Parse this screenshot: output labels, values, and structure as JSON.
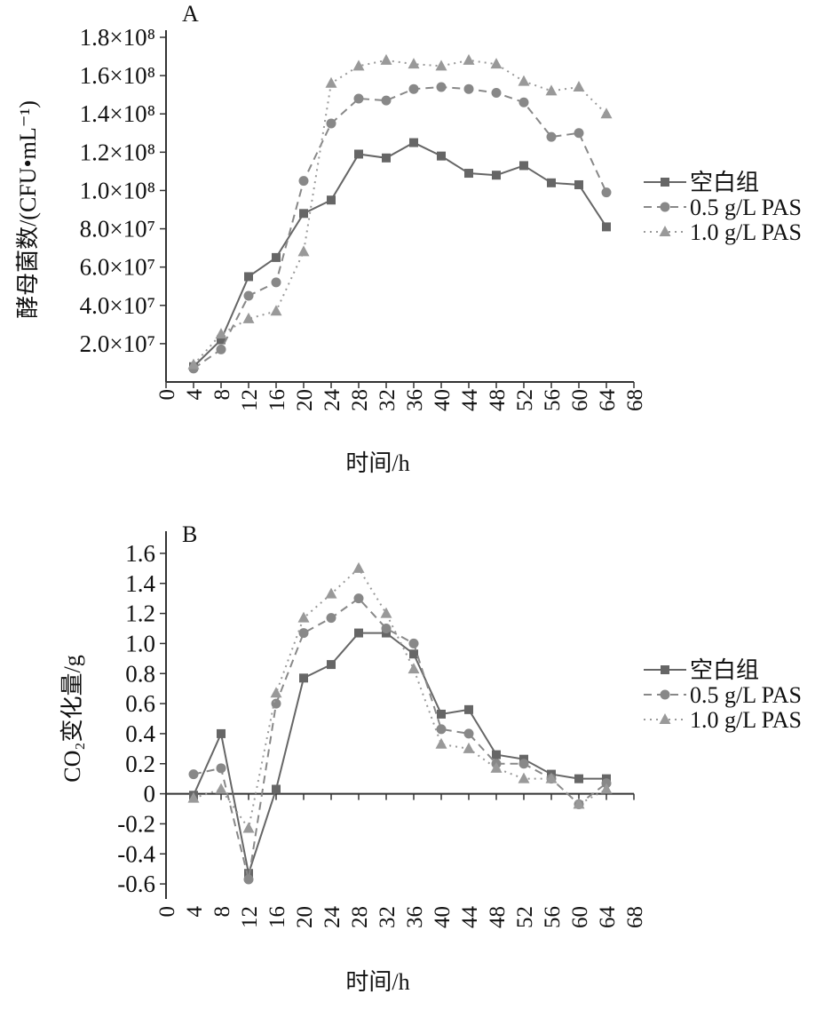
{
  "chart_data": [
    {
      "type": "line",
      "panel_label": "A",
      "xlabel": "时间/h",
      "ylabel": "酵母菌数/(CFU•mL⁻¹)",
      "xlim": [
        0,
        68
      ],
      "ylim": [
        0,
        180000000
      ],
      "x_ticks": [
        "0",
        "4",
        "8",
        "12",
        "16",
        "20",
        "24",
        "28",
        "32",
        "36",
        "40",
        "44",
        "48",
        "52",
        "56",
        "60",
        "64",
        "68"
      ],
      "y_ticks": [
        {
          "value": 20000000,
          "label": "2.0×10⁷"
        },
        {
          "value": 40000000,
          "label": "4.0×10⁷"
        },
        {
          "value": 60000000,
          "label": "6.0×10⁷"
        },
        {
          "value": 80000000,
          "label": "8.0×10⁷"
        },
        {
          "value": 100000000,
          "label": "1.0×10⁸"
        },
        {
          "value": 120000000,
          "label": "1.2×10⁸"
        },
        {
          "value": 140000000,
          "label": "1.4×10⁸"
        },
        {
          "value": 160000000,
          "label": "1.6×10⁸"
        },
        {
          "value": 180000000,
          "label": "1.8×10⁸"
        }
      ],
      "x": [
        4,
        8,
        12,
        16,
        20,
        24,
        28,
        32,
        36,
        40,
        44,
        48,
        52,
        56,
        60,
        64
      ],
      "legend_position": "right",
      "series": [
        {
          "name": "空白组",
          "marker": "square",
          "dash": "solid",
          "color": "#666666",
          "values": [
            8000000,
            22000000,
            55000000,
            65000000,
            88000000,
            95000000,
            119000000,
            117000000,
            125000000,
            118000000,
            109000000,
            108000000,
            113000000,
            104000000,
            103000000,
            81000000
          ]
        },
        {
          "name": "0.5 g/L PAS",
          "marker": "circle",
          "dash": "dashed",
          "color": "#888888",
          "values": [
            7000000,
            17000000,
            45000000,
            52000000,
            105000000,
            135000000,
            148000000,
            147000000,
            153000000,
            154000000,
            153000000,
            151000000,
            146000000,
            128000000,
            130000000,
            99000000
          ]
        },
        {
          "name": "1.0 g/L PAS",
          "marker": "triangle",
          "dash": "dotted",
          "color": "#999999",
          "values": [
            9000000,
            25000000,
            33000000,
            37000000,
            68000000,
            156000000,
            165000000,
            168000000,
            166000000,
            165000000,
            168000000,
            166000000,
            157000000,
            152000000,
            154000000,
            140000000
          ]
        }
      ]
    },
    {
      "type": "line",
      "panel_label": "B",
      "xlabel": "时间/h",
      "ylabel": "CO₂变化量/g",
      "xlim": [
        0,
        68
      ],
      "ylim": [
        -0.7,
        1.7
      ],
      "x_ticks": [
        "0",
        "4",
        "8",
        "12",
        "16",
        "20",
        "24",
        "28",
        "32",
        "36",
        "40",
        "44",
        "48",
        "52",
        "56",
        "60",
        "64",
        "68"
      ],
      "y_ticks": [
        {
          "value": -0.6,
          "label": "-0.6"
        },
        {
          "value": -0.4,
          "label": "-0.4"
        },
        {
          "value": -0.2,
          "label": "-0.2"
        },
        {
          "value": 0,
          "label": "0"
        },
        {
          "value": 0.2,
          "label": "0.2"
        },
        {
          "value": 0.4,
          "label": "0.4"
        },
        {
          "value": 0.6,
          "label": "0.6"
        },
        {
          "value": 0.8,
          "label": "0.8"
        },
        {
          "value": 1.0,
          "label": "1.0"
        },
        {
          "value": 1.2,
          "label": "1.2"
        },
        {
          "value": 1.4,
          "label": "1.4"
        },
        {
          "value": 1.6,
          "label": "1.6"
        }
      ],
      "x": [
        4,
        8,
        12,
        16,
        20,
        24,
        28,
        32,
        36,
        40,
        44,
        48,
        52,
        56,
        60,
        64
      ],
      "legend_position": "right",
      "series": [
        {
          "name": "空白组",
          "marker": "square",
          "dash": "solid",
          "color": "#666666",
          "values": [
            -0.01,
            0.4,
            -0.53,
            0.03,
            0.77,
            0.86,
            1.07,
            1.07,
            0.93,
            0.53,
            0.56,
            0.26,
            0.23,
            0.13,
            0.1,
            0.1
          ]
        },
        {
          "name": "0.5 g/L PAS",
          "marker": "circle",
          "dash": "dashed",
          "color": "#888888",
          "values": [
            0.13,
            0.17,
            -0.57,
            0.6,
            1.07,
            1.17,
            1.3,
            1.1,
            1.0,
            0.43,
            0.4,
            0.2,
            0.2,
            0.1,
            -0.07,
            0.07
          ]
        },
        {
          "name": "1.0 g/L PAS",
          "marker": "triangle",
          "dash": "dotted",
          "color": "#999999",
          "values": [
            -0.03,
            0.03,
            -0.23,
            0.67,
            1.17,
            1.33,
            1.5,
            1.2,
            0.83,
            0.33,
            0.3,
            0.17,
            0.1,
            0.1,
            -0.07,
            0.03
          ]
        }
      ]
    }
  ]
}
